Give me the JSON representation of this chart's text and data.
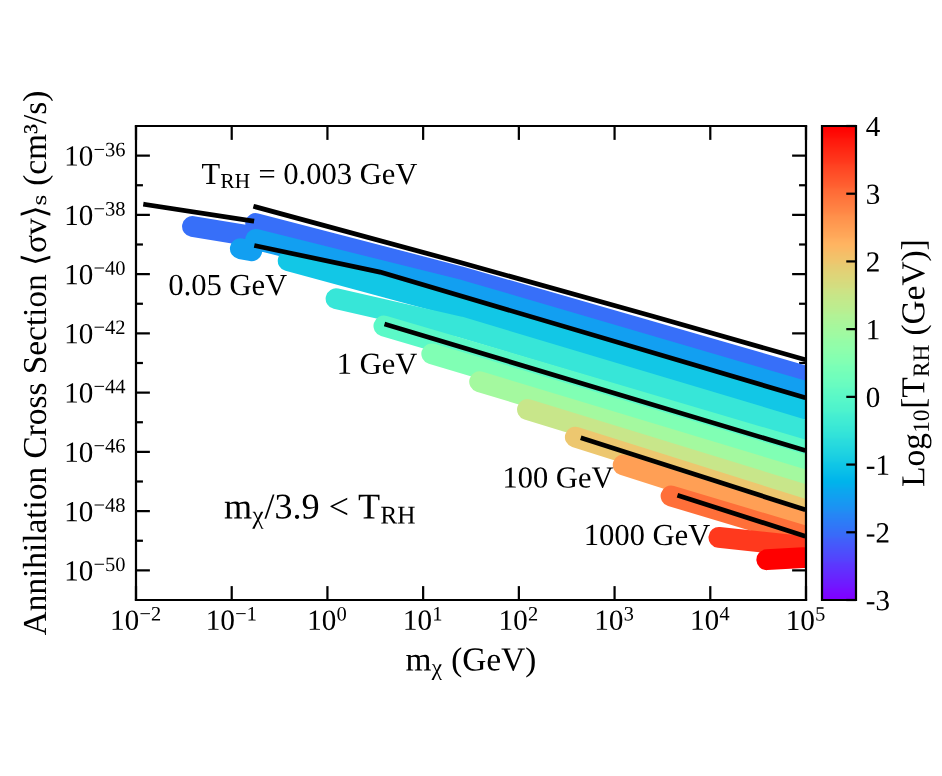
{
  "chart_data": {
    "type": "line",
    "log": "xy",
    "xlabel": "m$_{χ}$ (GeV)",
    "ylabel": "Annihilation Cross Section ⟨σv⟩ₛ (cm³/s)",
    "clabel": "Log$_{10}$[T$_{RH}$ (GeV)]",
    "xlim": [
      0.01,
      100000
    ],
    "ylim": [
      1e-51,
      1e-35
    ],
    "xticks": [
      {
        "value": 0.01,
        "label": "10$^{−2}$"
      },
      {
        "value": 0.1,
        "label": "10$^{−1}$"
      },
      {
        "value": 1,
        "label": "10$^{0}$"
      },
      {
        "value": 10,
        "label": "10$^{1}$"
      },
      {
        "value": 100,
        "label": "10$^{2}$"
      },
      {
        "value": 1000,
        "label": "10$^{3}$"
      },
      {
        "value": 10000,
        "label": "10$^{4}$"
      },
      {
        "value": 100000,
        "label": "10$^{5}$"
      }
    ],
    "yticks": [
      {
        "value": 1e-50,
        "label": "10$^{−50}$"
      },
      {
        "value": 1e-49,
        "label": null
      },
      {
        "value": 1e-48,
        "label": "10$^{−48}$"
      },
      {
        "value": 1e-47,
        "label": null
      },
      {
        "value": 1e-46,
        "label": "10$^{−46}$"
      },
      {
        "value": 1e-45,
        "label": null
      },
      {
        "value": 1e-44,
        "label": "10$^{−44}$"
      },
      {
        "value": 1e-43,
        "label": null
      },
      {
        "value": 1e-42,
        "label": "10$^{−42}$"
      },
      {
        "value": 1e-41,
        "label": null
      },
      {
        "value": 1e-40,
        "label": "10$^{−40}$"
      },
      {
        "value": 1e-39,
        "label": null
      },
      {
        "value": 1e-38,
        "label": "10$^{−38}$"
      },
      {
        "value": 1e-37,
        "label": null
      },
      {
        "value": 1e-36,
        "label": "10$^{−36}$"
      }
    ],
    "clim": [
      -3,
      4
    ],
    "cticks": [
      -3,
      -2,
      -1,
      0,
      1,
      2,
      3,
      4
    ],
    "grid": false,
    "line_style": "solid",
    "annotations": [
      "m$_{χ}$/3.9 < T$_{RH}$"
    ],
    "series": [
      {
        "color": "#376ff9",
        "x": [
          0.0389,
          0.162,
          0.17,
          0.178,
          24,
          93300
        ],
        "values": [
          4.07e-39,
          1.91e-39,
          null,
          5.13e-39,
          8.32e-41,
          3.8e-44
        ]
      },
      {
        "color": "#129ff1",
        "x": [
          0.123,
          0.162,
          0.17,
          0.178,
          24,
          93300
        ],
        "values": [
          7.24e-40,
          6.17e-40,
          null,
          1.48e-39,
          2.88e-41,
          1.15e-44
        ]
      },
      {
        "color": "#12c7e6",
        "x": [
          0.389,
          24,
          93300
        ],
        "values": [
          2.82e-40,
          7.59e-42,
          2.75e-45
        ]
      },
      {
        "color": "#37e6d8",
        "x": [
          1.23,
          24,
          93300
        ],
        "values": [
          1.48e-41,
          1.66e-42,
          5.62e-46
        ]
      },
      {
        "color": "#5bf9c7",
        "x": [
          3.89,
          93300
        ],
        "values": [
          1.78e-42,
          1.17e-46
        ]
      },
      {
        "color": "#80ffb4",
        "x": [
          12.3,
          93300
        ],
        "values": [
          2.04e-43,
          3.72e-47
        ]
      },
      {
        "color": "#a4f99f",
        "x": [
          38.9,
          93300
        ],
        "values": [
          2.34e-44,
          1.17e-47
        ]
      },
      {
        "color": "#c8e68a",
        "x": [
          123,
          93300
        ],
        "values": [
          2.69e-45,
          3.72e-48
        ]
      },
      {
        "color": "#edc76f",
        "x": [
          389,
          93300
        ],
        "values": [
          3.16e-46,
          1.17e-48
        ]
      },
      {
        "color": "#ff9f55",
        "x": [
          1230,
          93300
        ],
        "values": [
          3.63e-47,
          4.17e-49
        ]
      },
      {
        "color": "#ff6f39",
        "x": [
          3890,
          93300
        ],
        "values": [
          3.24e-48,
          1.51e-49
        ]
      },
      {
        "color": "#ff391d",
        "x": [
          12300,
          93300
        ],
        "values": [
          1.29e-49,
          6.46e-50
        ]
      },
      {
        "color": "#ff0000",
        "x": [
          38900,
          93300
        ],
        "values": [
          2.29e-50,
          2.69e-50
        ]
      },
      {
        "name": "T$_{RH}$ = 0.003 GeV",
        "color": "#000000",
        "x": [
          0.0126,
          0.162,
          0.17,
          0.178,
          24,
          2510,
          93300
        ],
        "values": [
          2.24e-38,
          6.31e-39,
          null,
          1.86e-38,
          2.51e-40,
          3.8e-42,
          1.35e-43
        ]
      },
      {
        "name": "0.05 GeV",
        "color": "#000000",
        "x": [
          0.182,
          3.55,
          93300
        ],
        "values": [
          8.91e-40,
          1.17e-40,
          7.08e-45
        ]
      },
      {
        "name": "1 GeV",
        "color": "#000000",
        "x": [
          4.17,
          93300
        ],
        "values": [
          1.95e-42,
          1.17e-46
        ]
      },
      {
        "name": "100 GeV",
        "color": "#000000",
        "x": [
          468,
          93300
        ],
        "values": [
          2.82e-46,
          1.17e-48
        ]
      },
      {
        "name": "1000 GeV",
        "color": "#000000",
        "x": [
          4790,
          93300
        ],
        "values": [
          3.24e-48,
          1.51e-49
        ]
      }
    ]
  }
}
